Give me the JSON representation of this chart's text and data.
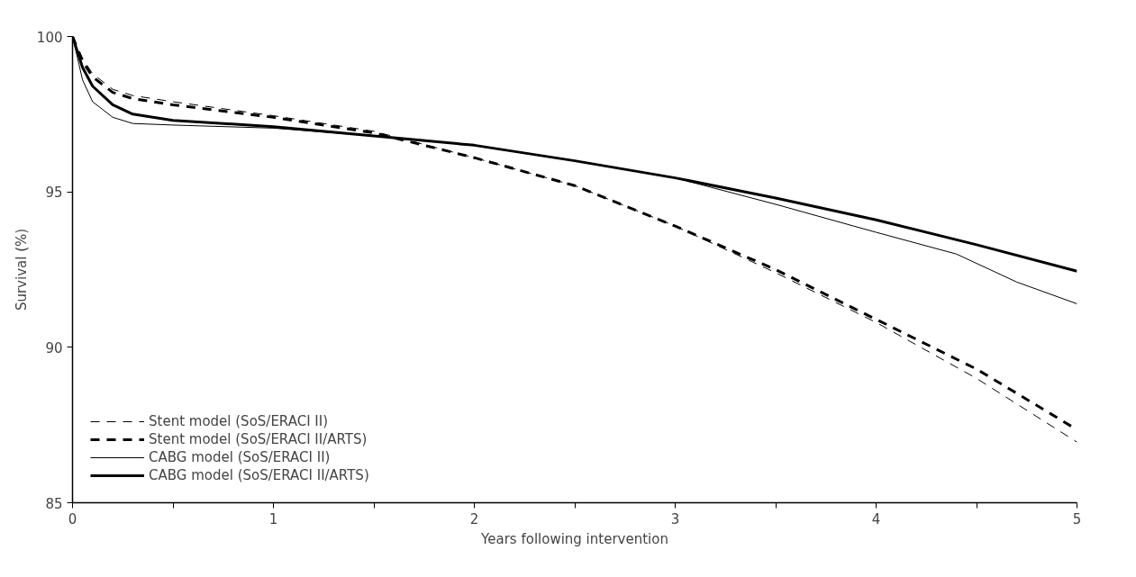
{
  "chart_data": {
    "type": "line",
    "xlabel": "Years following intervention",
    "ylabel": "Survival (%)",
    "x": [
      0,
      0.05,
      0.1,
      0.2,
      0.3,
      0.5,
      1,
      1.5,
      2,
      2.5,
      3,
      3.5,
      4,
      4.5,
      5
    ],
    "series": [
      {
        "name": "Stent model (SoS/ERACI II)",
        "color": "#000000",
        "line_style": "dashed",
        "values": [
          100,
          99.3,
          98.8,
          98.3,
          98.1,
          97.9,
          97.45,
          96.95,
          96.1,
          95.2,
          93.9,
          92.4,
          90.8,
          89.0,
          86.95
        ]
      },
      {
        "name": "Stent model (SoS/ERACI II/ARTS)",
        "color": "#000000",
        "line_style": "dashed",
        "values": [
          100,
          99.2,
          98.7,
          98.2,
          98.0,
          97.8,
          97.4,
          96.9,
          96.1,
          95.2,
          93.9,
          92.5,
          90.9,
          89.3,
          87.35
        ]
      },
      {
        "name": "CABG model (SoS/ERACI II)",
        "color": "#000000",
        "line_style": "solid",
        "x": [
          0,
          0.05,
          0.1,
          0.2,
          0.3,
          0.5,
          1,
          1.5,
          2,
          2.5,
          3,
          3.5,
          4,
          4.4,
          4.7,
          5
        ],
        "values": [
          100,
          98.6,
          97.9,
          97.4,
          97.2,
          97.15,
          97.05,
          96.8,
          96.5,
          96.0,
          95.45,
          94.6,
          93.7,
          93.0,
          92.1,
          91.4
        ]
      },
      {
        "name": "CABG model (SoS/ERACI II/ARTS)",
        "color": "#000000",
        "line_style": "solid",
        "values": [
          100,
          99.0,
          98.4,
          97.8,
          97.5,
          97.3,
          97.1,
          96.8,
          96.5,
          96.0,
          95.45,
          94.8,
          94.1,
          93.3,
          92.45
        ]
      }
    ],
    "xlim": [
      0,
      5
    ],
    "ylim": [
      85,
      100
    ],
    "xticks": [
      0,
      {
        "value": 0.5,
        "label": null
      },
      1,
      {
        "value": 1.5,
        "label": null
      },
      2,
      {
        "value": 2.5,
        "label": null
      },
      3,
      {
        "value": 3.5,
        "label": null
      },
      4,
      {
        "value": 4.5,
        "label": null
      },
      5
    ],
    "yticks": [
      85,
      90,
      95,
      100
    ],
    "grid": false,
    "legend": "bottom left",
    "marker": "none"
  }
}
